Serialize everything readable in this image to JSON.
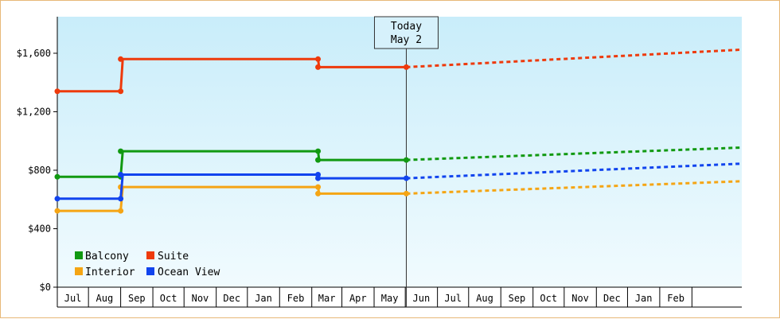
{
  "chart_data": {
    "type": "line",
    "title": "",
    "xlabel": "",
    "ylabel": "",
    "ylim": [
      0,
      1850
    ],
    "yticks": [
      0,
      400,
      800,
      1200,
      1600
    ],
    "ytick_labels": [
      "$0",
      "$400",
      "$800",
      "$1,200",
      "$1,600"
    ],
    "months": [
      "Jul",
      "Aug",
      "Sep",
      "Oct",
      "Nov",
      "Dec",
      "Jan",
      "Feb",
      "Mar",
      "Apr",
      "May",
      "Jun",
      "Jul",
      "Aug",
      "Sep",
      "Oct",
      "Nov",
      "Dec",
      "Jan",
      "Feb"
    ],
    "x_start": "2023-06-01",
    "x_end": "2025-03-21",
    "today": {
      "date": "2024-05-02",
      "label_line1": "Today",
      "label_line2": "May 2"
    },
    "legend_placement": "bottom-left",
    "background": {
      "top": "#c9edfa",
      "bottom": "#f1fbfe"
    },
    "series": [
      {
        "name": "Balcony",
        "color": "#119911",
        "history": [
          [
            "2023-06-01",
            755
          ],
          [
            "2023-08-01",
            755
          ],
          [
            "2023-08-03",
            930
          ],
          [
            "2024-02-07",
            930
          ],
          [
            "2024-02-08",
            870
          ],
          [
            "2024-05-02",
            870
          ]
        ],
        "markers": [
          [
            "2023-06-01",
            755
          ],
          [
            "2023-08-01",
            755
          ],
          [
            "2023-08-01",
            930
          ],
          [
            "2024-02-07",
            930
          ],
          [
            "2024-02-07",
            870
          ],
          [
            "2024-05-02",
            870
          ]
        ],
        "projection": [
          [
            "2024-05-02",
            870
          ],
          [
            "2025-03-21",
            955
          ]
        ]
      },
      {
        "name": "Interior",
        "color": "#f5a514",
        "history": [
          [
            "2023-06-01",
            522
          ],
          [
            "2023-08-01",
            522
          ],
          [
            "2023-08-03",
            685
          ],
          [
            "2024-02-07",
            685
          ],
          [
            "2024-02-08",
            640
          ],
          [
            "2024-05-02",
            640
          ]
        ],
        "markers": [
          [
            "2023-06-01",
            522
          ],
          [
            "2023-08-01",
            522
          ],
          [
            "2023-08-01",
            685
          ],
          [
            "2024-02-07",
            685
          ],
          [
            "2024-02-07",
            640
          ],
          [
            "2024-05-02",
            640
          ]
        ],
        "projection": [
          [
            "2024-05-02",
            640
          ],
          [
            "2025-03-21",
            725
          ]
        ]
      },
      {
        "name": "Suite",
        "color": "#ee3a0c",
        "history": [
          [
            "2023-06-01",
            1340
          ],
          [
            "2023-08-01",
            1340
          ],
          [
            "2023-08-03",
            1560
          ],
          [
            "2024-02-07",
            1560
          ],
          [
            "2024-02-08",
            1505
          ],
          [
            "2024-05-02",
            1505
          ]
        ],
        "markers": [
          [
            "2023-06-01",
            1340
          ],
          [
            "2023-08-01",
            1340
          ],
          [
            "2023-08-01",
            1560
          ],
          [
            "2024-02-07",
            1560
          ],
          [
            "2024-02-07",
            1505
          ],
          [
            "2024-05-02",
            1505
          ]
        ],
        "projection": [
          [
            "2024-05-02",
            1505
          ],
          [
            "2025-03-21",
            1625
          ]
        ]
      },
      {
        "name": "Ocean View",
        "color": "#1144ee",
        "history": [
          [
            "2023-06-01",
            605
          ],
          [
            "2023-08-01",
            605
          ],
          [
            "2023-08-03",
            770
          ],
          [
            "2024-02-07",
            770
          ],
          [
            "2024-02-08",
            745
          ],
          [
            "2024-05-02",
            745
          ]
        ],
        "markers": [
          [
            "2023-06-01",
            605
          ],
          [
            "2023-08-01",
            605
          ],
          [
            "2023-08-01",
            770
          ],
          [
            "2024-02-07",
            770
          ],
          [
            "2024-02-07",
            745
          ],
          [
            "2024-05-02",
            745
          ]
        ],
        "projection": [
          [
            "2024-05-02",
            745
          ],
          [
            "2025-03-21",
            845
          ]
        ]
      }
    ]
  }
}
